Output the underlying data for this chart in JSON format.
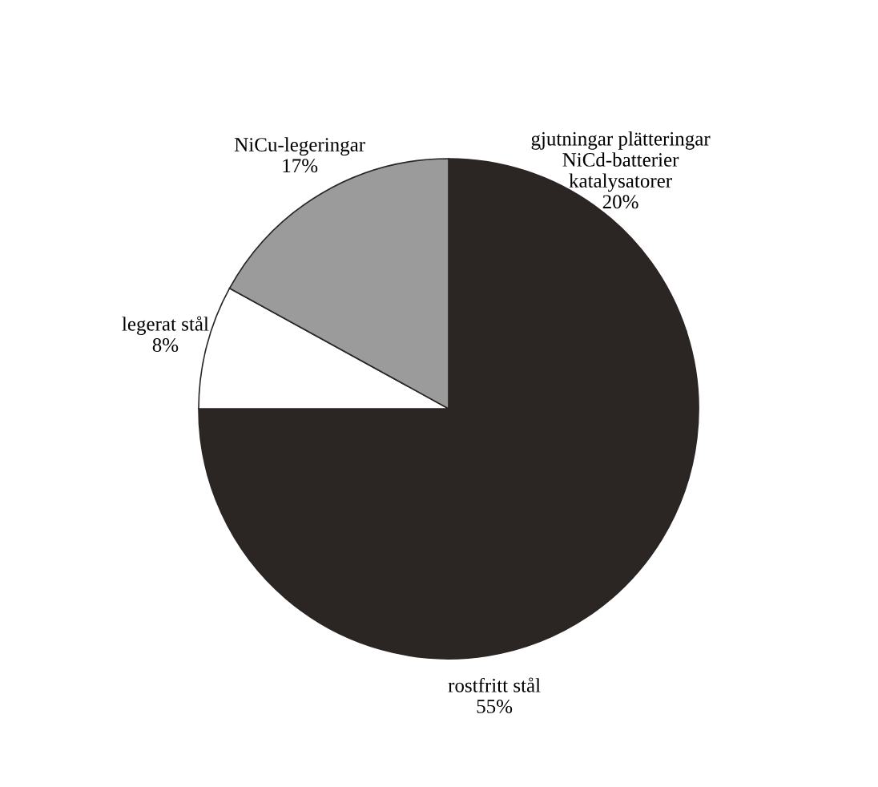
{
  "chart_data": {
    "type": "pie",
    "categories": [
      "gjutningar plätteringar\nNiCd-batterier\nkatalysatorer",
      "rostfritt stål",
      "legerat stål",
      "NiCu-legeringar"
    ],
    "values": [
      20,
      55,
      8,
      17
    ],
    "value_labels": [
      "20%",
      "55%",
      "8%",
      "17%"
    ],
    "colors": [
      "#2b2523",
      "#2b2523",
      "#ffffff",
      "#9b9b9b"
    ]
  }
}
